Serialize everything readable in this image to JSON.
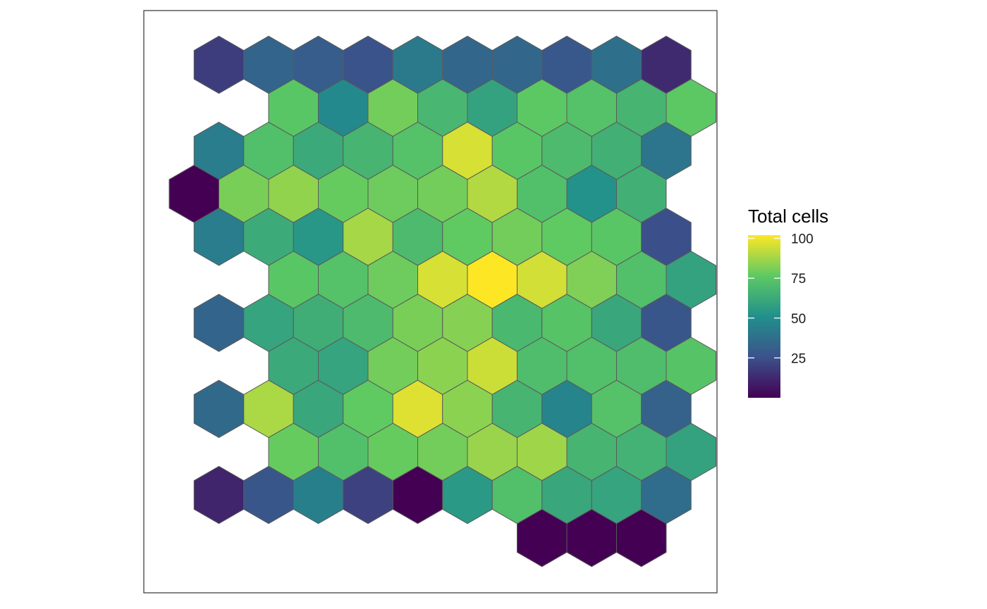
{
  "chart_data": {
    "type": "heatmap",
    "subtype": "hexbin",
    "title": "",
    "xlabel": "",
    "ylabel": "",
    "axes_visible": false,
    "panel_border": true,
    "grid": false,
    "color_scale": "viridis",
    "legend": {
      "title": "Total cells",
      "position": "right",
      "min": 0,
      "max": 102,
      "ticks": [
        "25",
        "50",
        "75",
        "100"
      ]
    },
    "rows": [
      [
        19,
        33,
        30,
        26,
        42,
        34,
        34,
        28,
        38,
        13
      ],
      [
        75,
        48,
        80,
        68,
        59,
        76,
        73,
        67,
        76
      ],
      [
        43,
        72,
        62,
        67,
        73,
        96,
        75,
        70,
        65,
        40
      ],
      [
        0,
        81,
        85,
        78,
        79,
        80,
        90,
        72,
        52,
        65
      ],
      [
        43,
        63,
        54,
        88,
        70,
        77,
        80,
        77,
        75,
        25
      ],
      [
        75,
        73,
        79,
        96,
        102,
        95,
        82,
        72,
        59
      ],
      [
        33,
        60,
        64,
        70,
        81,
        83,
        69,
        74,
        61,
        27
      ],
      [
        62,
        60,
        80,
        84,
        94,
        71,
        72,
        71,
        74
      ],
      [
        35,
        89,
        61,
        77,
        97,
        84,
        67,
        46,
        73,
        32
      ],
      [
        78,
        72,
        78,
        80,
        86,
        87,
        67,
        66,
        59
      ],
      [
        11,
        27,
        44,
        20,
        0,
        55,
        72,
        61,
        60,
        36
      ],
      [
        0,
        0,
        0
      ]
    ],
    "row_starts": [
      0,
      1,
      0,
      -1,
      0,
      1,
      0,
      1,
      0,
      1,
      0,
      6
    ]
  },
  "colors": {
    "viridis_stops": [
      "#440154",
      "#3b528b",
      "#21908c",
      "#5dc963",
      "#fde725"
    ],
    "hex_stroke": "#5a5a5a",
    "panel_border": "#333333"
  }
}
